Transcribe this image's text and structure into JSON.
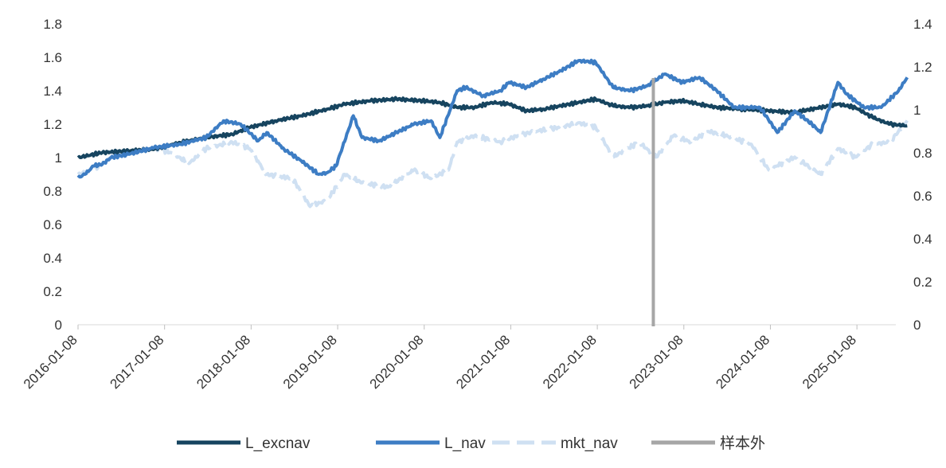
{
  "chart_data": {
    "type": "line",
    "title": "",
    "xlabel": "",
    "ylabel": "",
    "ylim_left": [
      0,
      1.8
    ],
    "ylim_right": [
      0,
      1.4
    ],
    "x_range": [
      "2016-01-08",
      "2025-06-20"
    ],
    "grid": false,
    "legend_position": "bottom",
    "x_tick_labels": [
      "2016-01-08",
      "2017-01-08",
      "2018-01-08",
      "2019-01-08",
      "2020-01-08",
      "2021-01-08",
      "2022-01-08",
      "2023-01-08",
      "2024-01-08",
      "2025-01-08"
    ],
    "y_left_tick_labels": [
      "0",
      "0.2",
      "0.4",
      "0.6",
      "0.8",
      "1",
      "1.2",
      "1.4",
      "1.6",
      "1.8"
    ],
    "y_right_tick_labels": [
      "0",
      "0.2",
      "0.4",
      "0.6",
      "0.8",
      "1",
      "1.2",
      "1.4"
    ],
    "out_of_sample_start": "2022-09-01",
    "series": [
      {
        "name": "L_excnav",
        "axis": "left",
        "style": "solid",
        "color": "#16445f",
        "x": [
          2016.02,
          2016.3,
          2016.6,
          2016.9,
          2017.2,
          2017.5,
          2017.8,
          2018.0,
          2018.3,
          2018.6,
          2018.9,
          2019.1,
          2019.4,
          2019.7,
          2020.0,
          2020.2,
          2020.4,
          2020.6,
          2020.8,
          2021.0,
          2021.2,
          2021.4,
          2021.6,
          2021.8,
          2022.0,
          2022.2,
          2022.4,
          2022.6,
          2022.8,
          2023.0,
          2023.2,
          2023.4,
          2023.7,
          2024.0,
          2024.3,
          2024.6,
          2024.8,
          2025.0,
          2025.2,
          2025.4,
          2025.6
        ],
        "values": [
          1.0,
          1.03,
          1.04,
          1.05,
          1.09,
          1.12,
          1.14,
          1.18,
          1.22,
          1.25,
          1.29,
          1.32,
          1.34,
          1.35,
          1.34,
          1.33,
          1.3,
          1.3,
          1.33,
          1.32,
          1.28,
          1.29,
          1.31,
          1.33,
          1.35,
          1.31,
          1.3,
          1.31,
          1.33,
          1.34,
          1.32,
          1.3,
          1.29,
          1.28,
          1.27,
          1.3,
          1.32,
          1.3,
          1.24,
          1.2,
          1.19
        ]
      },
      {
        "name": "L_nav",
        "axis": "left",
        "style": "solid",
        "color": "#3d7dc4",
        "x": [
          2016.02,
          2016.1,
          2016.2,
          2016.3,
          2016.4,
          2016.6,
          2016.9,
          2017.2,
          2017.5,
          2017.7,
          2017.9,
          2018.1,
          2018.2,
          2018.4,
          2018.6,
          2018.8,
          2018.9,
          2019.0,
          2019.2,
          2019.3,
          2019.5,
          2019.7,
          2019.9,
          2020.1,
          2020.2,
          2020.4,
          2020.5,
          2020.7,
          2020.9,
          2021.0,
          2021.2,
          2021.4,
          2021.6,
          2021.8,
          2022.0,
          2022.2,
          2022.4,
          2022.6,
          2022.8,
          2023.0,
          2023.2,
          2023.4,
          2023.6,
          2023.9,
          2024.1,
          2024.3,
          2024.5,
          2024.6,
          2024.8,
          2024.9,
          2025.1,
          2025.3,
          2025.5,
          2025.6
        ],
        "values": [
          0.88,
          0.9,
          0.95,
          0.96,
          1.0,
          1.02,
          1.06,
          1.08,
          1.12,
          1.22,
          1.2,
          1.1,
          1.15,
          1.05,
          0.98,
          0.9,
          0.91,
          0.95,
          1.25,
          1.12,
          1.1,
          1.15,
          1.2,
          1.22,
          1.12,
          1.4,
          1.42,
          1.37,
          1.4,
          1.45,
          1.42,
          1.47,
          1.52,
          1.58,
          1.57,
          1.42,
          1.4,
          1.43,
          1.5,
          1.45,
          1.48,
          1.4,
          1.3,
          1.3,
          1.15,
          1.28,
          1.2,
          1.15,
          1.45,
          1.38,
          1.3,
          1.3,
          1.4,
          1.48
        ]
      },
      {
        "name": "mkt_nav",
        "axis": "right",
        "style": "dashed",
        "color": "#cfe0f2",
        "x": [
          2016.02,
          2016.2,
          2016.4,
          2016.6,
          2016.9,
          2017.1,
          2017.3,
          2017.5,
          2017.8,
          2018.0,
          2018.2,
          2018.5,
          2018.7,
          2018.9,
          2019.1,
          2019.3,
          2019.6,
          2019.9,
          2020.1,
          2020.3,
          2020.4,
          2020.6,
          2020.9,
          2021.1,
          2021.3,
          2021.6,
          2021.8,
          2022.0,
          2022.2,
          2022.5,
          2022.7,
          2022.9,
          2023.1,
          2023.3,
          2023.5,
          2023.8,
          2024.0,
          2024.1,
          2024.3,
          2024.6,
          2024.8,
          2025.0,
          2025.2,
          2025.4,
          2025.6
        ],
        "values": [
          0.7,
          0.72,
          0.78,
          0.8,
          0.82,
          0.8,
          0.75,
          0.82,
          0.85,
          0.82,
          0.7,
          0.68,
          0.55,
          0.58,
          0.7,
          0.66,
          0.64,
          0.72,
          0.68,
          0.72,
          0.85,
          0.88,
          0.85,
          0.88,
          0.9,
          0.92,
          0.94,
          0.92,
          0.78,
          0.85,
          0.78,
          0.88,
          0.85,
          0.9,
          0.88,
          0.84,
          0.72,
          0.74,
          0.78,
          0.7,
          0.82,
          0.78,
          0.84,
          0.85,
          0.95
        ]
      }
    ]
  },
  "legend": {
    "items": [
      {
        "label": "L_excnav",
        "color": "#16445f",
        "style": "solid"
      },
      {
        "label": "L_nav",
        "color": "#3d7dc4",
        "style": "solid"
      },
      {
        "label": "mkt_nav",
        "color": "#cfe0f2",
        "style": "dashed"
      },
      {
        "label": "样本外",
        "color": "#a6a6a6",
        "style": "solid"
      }
    ]
  }
}
